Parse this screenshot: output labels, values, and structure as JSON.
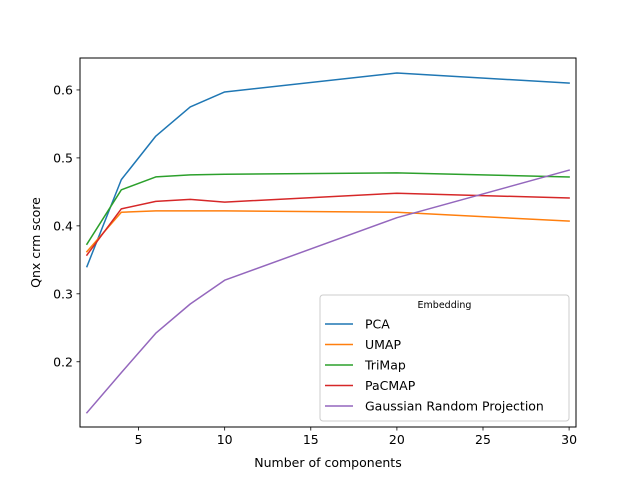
{
  "chart_data": {
    "type": "line",
    "title": "",
    "xlabel": "Number of components",
    "ylabel": "Qnx crm score",
    "xlim": [
      1.6,
      30.4
    ],
    "ylim": [
      0.104,
      0.647
    ],
    "xticks": [
      5,
      10,
      15,
      20,
      25,
      30
    ],
    "yticks": [
      0.2,
      0.3,
      0.4,
      0.5,
      0.6
    ],
    "x": [
      2,
      4,
      6,
      8,
      10,
      20,
      30
    ],
    "grid": false,
    "legend": {
      "title": "Embedding",
      "position": "lower right"
    },
    "series": [
      {
        "name": "PCA",
        "color": "#1f77b4",
        "values": [
          0.34,
          0.468,
          0.532,
          0.575,
          0.597,
          0.625,
          0.61
        ]
      },
      {
        "name": "UMAP",
        "color": "#ff7f0e",
        "values": [
          0.362,
          0.42,
          0.422,
          0.422,
          0.422,
          0.42,
          0.407
        ]
      },
      {
        "name": "TriMap",
        "color": "#2ca02c",
        "values": [
          0.373,
          0.453,
          0.472,
          0.475,
          0.476,
          0.478,
          0.472
        ]
      },
      {
        "name": "PaCMAP",
        "color": "#d62728",
        "values": [
          0.357,
          0.425,
          0.436,
          0.439,
          0.435,
          0.448,
          0.441
        ]
      },
      {
        "name": "Gaussian Random Projection",
        "color": "#9467bd",
        "values": [
          0.125,
          0.184,
          0.242,
          0.285,
          0.32,
          0.412,
          0.482
        ]
      }
    ]
  }
}
